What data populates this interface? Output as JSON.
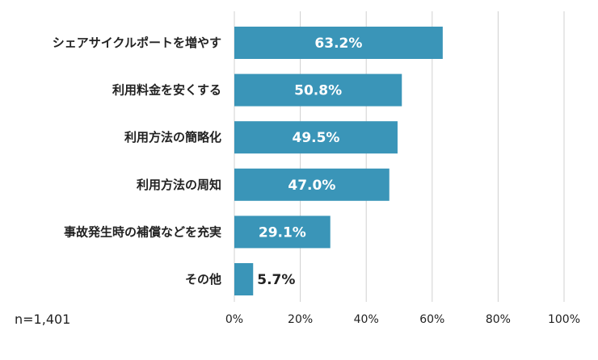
{
  "chart_data": {
    "type": "bar",
    "orientation": "horizontal",
    "categories": [
      "シェアサイクルポートを増やす",
      "利用料金を安くする",
      "利用方法の簡略化",
      "利用方法の周知",
      "事故発生時の補償などを充実",
      "その他"
    ],
    "values": [
      63.2,
      50.8,
      49.5,
      47.0,
      29.1,
      5.7
    ],
    "data_labels": [
      "63.2%",
      "50.8%",
      "49.5%",
      "47.0%",
      "29.1%",
      "5.7%"
    ],
    "xlim": [
      0,
      100
    ],
    "x_ticks": [
      0,
      20,
      40,
      60,
      80,
      100
    ],
    "x_tick_labels": [
      "0%",
      "20%",
      "40%",
      "60%",
      "80%",
      "100%"
    ],
    "grid": true,
    "bar_color": "#3a95b8",
    "grid_color": "#d0d0d0"
  },
  "note": {
    "sample_size": "n=1,401"
  }
}
